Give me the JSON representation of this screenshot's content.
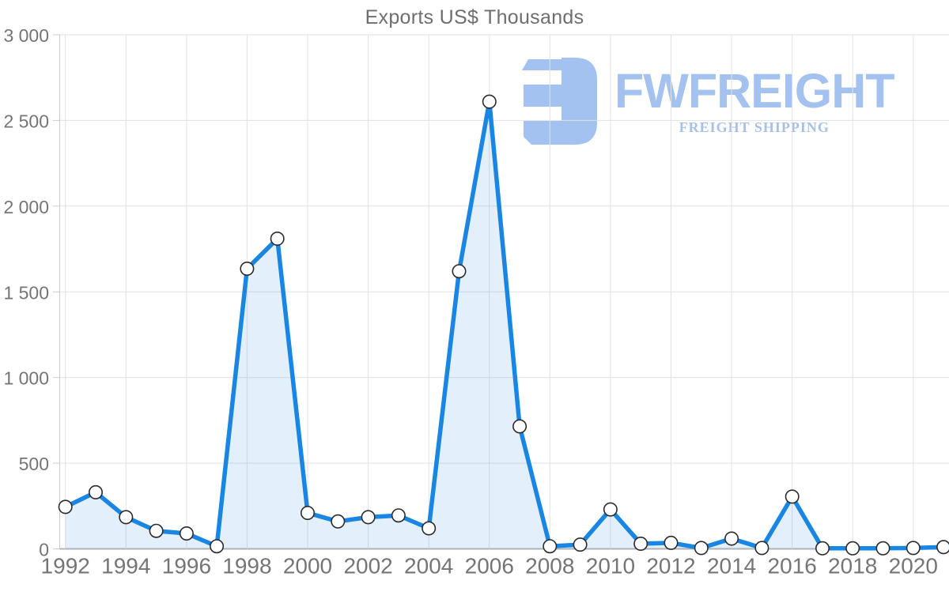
{
  "title": "Exports US$ Thousands",
  "watermark": {
    "brand": "FWFREIGHT",
    "tagline": "FREIGHT SHIPPING"
  },
  "colors": {
    "line": "#1986e3",
    "area_fill": "rgba(25,134,227,0.12)",
    "marker_fill": "#ffffff",
    "marker_stroke": "#2b2b2b",
    "grid": "#e2e2e2",
    "axis": "#b5b5b5",
    "axis_minor": "#cccccc",
    "tick_text": "#757575",
    "title_text": "#6e6e6e",
    "watermark_brand": "#a3c2f0",
    "watermark_tagline": "#a7c0e8"
  },
  "chart_data": {
    "type": "area",
    "title": "Exports US$ Thousands",
    "xlabel": "",
    "ylabel": "",
    "x": [
      1992,
      1993,
      1994,
      1995,
      1996,
      1997,
      1998,
      1999,
      2000,
      2001,
      2002,
      2003,
      2004,
      2005,
      2006,
      2007,
      2008,
      2009,
      2010,
      2011,
      2012,
      2013,
      2014,
      2015,
      2016,
      2017,
      2018,
      2019,
      2020,
      2021
    ],
    "values": [
      245,
      330,
      185,
      105,
      90,
      15,
      1635,
      1810,
      210,
      160,
      185,
      195,
      120,
      1620,
      2610,
      715,
      15,
      25,
      230,
      30,
      35,
      5,
      60,
      5,
      305,
      3,
      3,
      3,
      5,
      10
    ],
    "ylim": [
      0,
      3000
    ],
    "y_ticks": [
      0,
      500,
      1000,
      1500,
      2000,
      2500,
      3000
    ],
    "y_tick_labels": [
      "0",
      "500",
      "1 000",
      "1 500",
      "2 000",
      "2 500",
      "3 000"
    ],
    "x_ticks": [
      1992,
      1994,
      1996,
      1998,
      2000,
      2002,
      2004,
      2006,
      2008,
      2010,
      2012,
      2014,
      2016,
      2018,
      2020
    ],
    "grid": true,
    "legend": "none",
    "marker": "circle"
  }
}
